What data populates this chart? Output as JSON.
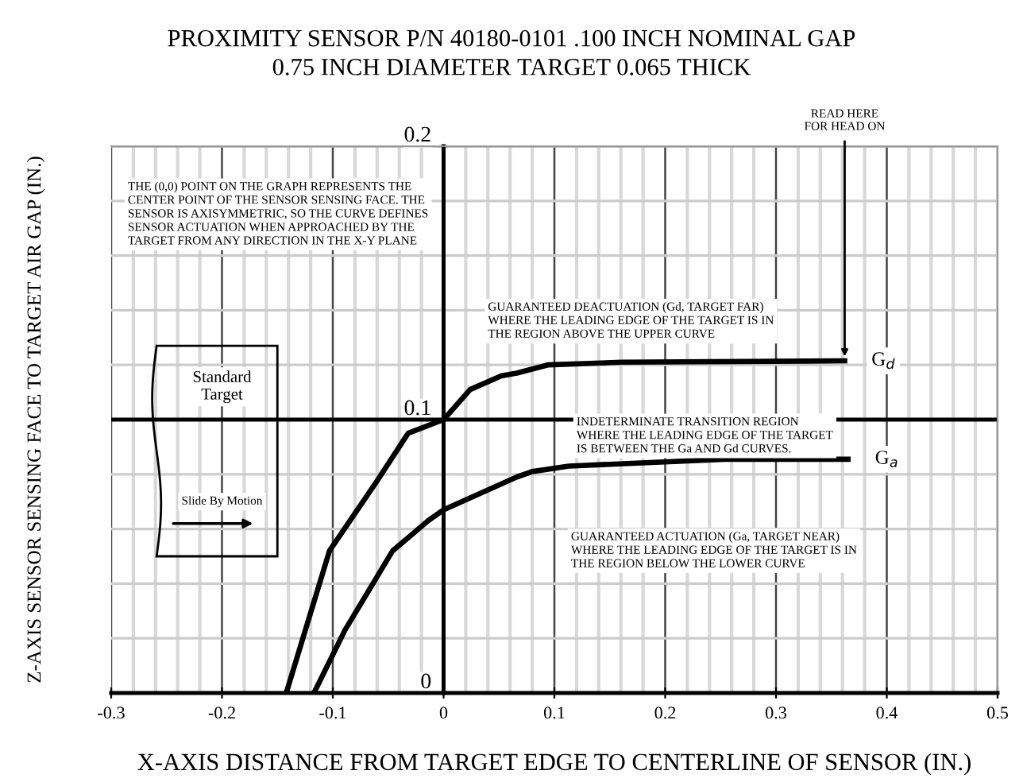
{
  "chart_data": {
    "type": "line",
    "title": "PROXIMITY SENSOR P/N 40180-0101 .100 INCH NOMINAL GAP\n0.75 INCH DIAMETER TARGET 0.065 THICK",
    "xlabel": "X-AXIS DISTANCE FROM TARGET EDGE TO CENTERLINE OF SENSOR (IN.)",
    "ylabel": "Z-AXIS SENSOR SENSING FACE TO TARGET AIR GAP (IN.)",
    "series": [
      {
        "name": "G$_{d}$",
        "color": "#000000",
        "x": [
          -0.142,
          -0.103,
          -0.061,
          -0.032,
          0,
          0.024,
          0.052,
          0.066,
          0.094,
          0.161,
          0.362
        ],
        "values": [
          0,
          0.052,
          0.077,
          0.095,
          0.1,
          0.111,
          0.116,
          0.117,
          0.12,
          0.121,
          0.1215
        ]
      },
      {
        "name": "G$_{a}$",
        "color": "#000000",
        "x": [
          -0.117,
          -0.089,
          -0.046,
          -0.014,
          0,
          0.066,
          0.08,
          0.113,
          0.254,
          0.365
        ],
        "values": [
          0,
          0.023,
          0.052,
          0.063,
          0.067,
          0.079,
          0.081,
          0.083,
          0.0855,
          0.0855
        ]
      }
    ],
    "xlim": [
      -0.3,
      0.5
    ],
    "xticks": [
      -0.3,
      -0.2,
      -0.1,
      0,
      0.1,
      0.2,
      0.3,
      0.4,
      0.5
    ],
    "ylim": [
      0,
      0.2
    ],
    "yticks": [
      0,
      0.1,
      0.2
    ],
    "ref_lines": [
      {
        "axis": "y",
        "value": 0.1,
        "color": "#000000"
      }
    ],
    "grid": true,
    "marker": "none",
    "line_style": "solid",
    "annotations": [
      "THE (0,0) POINT ON THE GRAPH REPRESENTS THE\nCENTER POINT OF THE SENSOR SENSING FACE. THE\nSENSOR IS AXISYMMETRIC, SO THE CURVE DEFINES\nSENSOR ACTUATION WHEN APPROACHED BY THE\nTARGET FROM ANY DIRECTION IN THE X-Y PLANE",
      "GUARANTEED DEACTUATION (Gd, TARGET FAR)\nWHERE THE LEADING EDGE OF THE TARGET IS IN\nTHE REGION ABOVE THE UPPER CURVE",
      "INDETERMINATE TRANSITION REGION\nWHERE THE LEADING EDGE OF THE TARGET\nIS BETWEEN THE Ga AND Gd CURVES.",
      "GUARANTEED ACTUATION (Ga, TARGET NEAR)\nWHERE THE LEADING EDGE OF THE TARGET IS IN\nTHE REGION BELOW THE LOWER CURVE",
      {
        "text": "READ HERE\nFOR HEAD ON",
        "x": 0.362,
        "y": 0.1215
      },
      "Standard\nTarget",
      "Slide By Motion"
    ]
  }
}
